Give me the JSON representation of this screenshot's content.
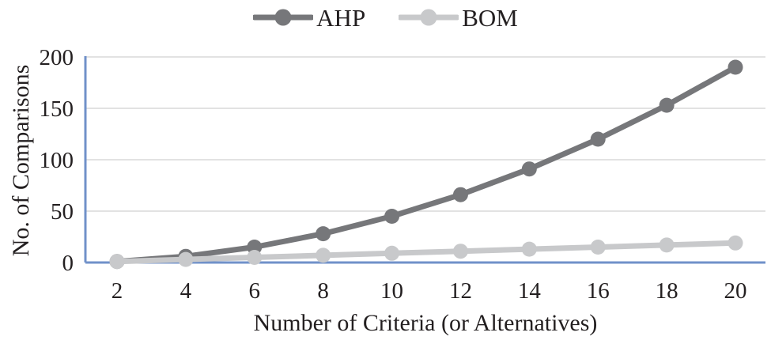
{
  "chart_data": {
    "type": "line",
    "title": "",
    "xlabel": "Number of Criteria (or Alternatives)",
    "ylabel": "No. of Comparisons",
    "x": [
      2,
      4,
      6,
      8,
      10,
      12,
      14,
      16,
      18,
      20
    ],
    "series": [
      {
        "name": "AHP",
        "color": "#76777a",
        "values": [
          1,
          6,
          15,
          28,
          45,
          66,
          91,
          120,
          153,
          190
        ]
      },
      {
        "name": "BOM",
        "color": "#c8c9cb",
        "values": [
          1,
          3,
          5,
          7,
          9,
          11,
          13,
          15,
          17,
          19
        ]
      }
    ],
    "xlim": [
      2,
      20
    ],
    "ylim": [
      0,
      200
    ],
    "yticks": [
      0,
      50,
      100,
      150,
      200
    ],
    "grid": true,
    "legend_position": "top",
    "axis_color": "#7091c9",
    "gridline_color": "#d9d9d9",
    "text_color": "#231f20"
  }
}
